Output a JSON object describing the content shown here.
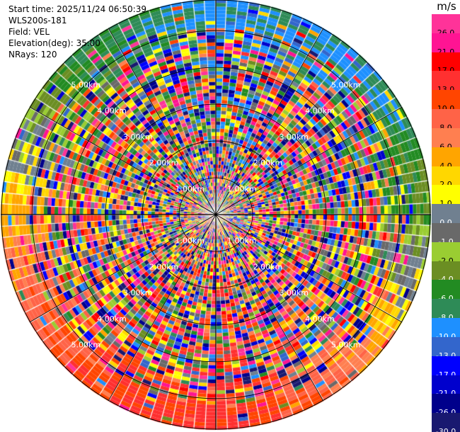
{
  "info": {
    "start_time": "Start time: 2025/11/24 06:50:39",
    "station": "WLS200s-181",
    "field": "Field: VEL",
    "elevation": "Elevation(deg): 35.00",
    "nrays": "NRays: 120"
  },
  "colorbar": {
    "unit": "m/s",
    "labels": [
      "26.0",
      "21.0",
      "17.0",
      "13.0",
      "10.0",
      "8.0",
      "6.0",
      "4.0",
      "2.0",
      "1.0",
      "0.0",
      "-1.0",
      "-2.0",
      "-4.0",
      "-6.0",
      "-8.0",
      "-10.0",
      "-13.0",
      "-17.0",
      "-21.0",
      "-26.0",
      "-30.0"
    ],
    "colors": [
      "#ff3399",
      "#ff1493",
      "#ff0000",
      "#ff3030",
      "#ff4500",
      "#ff6347",
      "#ff7f50",
      "#ffa500",
      "#ffd700",
      "#ffff00",
      "#708090",
      "#696969",
      "#9acd32",
      "#6b8e23",
      "#228b22",
      "#2e8b57",
      "#1e90ff",
      "#3366cc",
      "#0000ff",
      "#0000cd",
      "#00008b",
      "#191970"
    ]
  },
  "chart_data": {
    "type": "ppi",
    "field": "VEL",
    "unit": "m/s",
    "nrays": 120,
    "elevation_deg": 35.0,
    "range_rings_km": [
      1.0,
      2.0,
      3.0,
      4.0,
      5.0
    ],
    "ring_labels": [
      "1.00km",
      "2.00km",
      "3.00km",
      "4.00km",
      "5.00km"
    ],
    "max_range_km": 5.85,
    "outer_band_velocity_by_sector": [
      {
        "sector": "north",
        "velocity": -10.0
      },
      {
        "sector": "north-east",
        "velocity": -10.0
      },
      {
        "sector": "east",
        "velocity": -4.0
      },
      {
        "sector": "south-east",
        "velocity": 6.0
      },
      {
        "sector": "south",
        "velocity": 13.0
      },
      {
        "sector": "south-west",
        "velocity": 10.0
      },
      {
        "sector": "west",
        "velocity": 4.0
      },
      {
        "sector": "north-west",
        "velocity": -6.0
      }
    ]
  }
}
